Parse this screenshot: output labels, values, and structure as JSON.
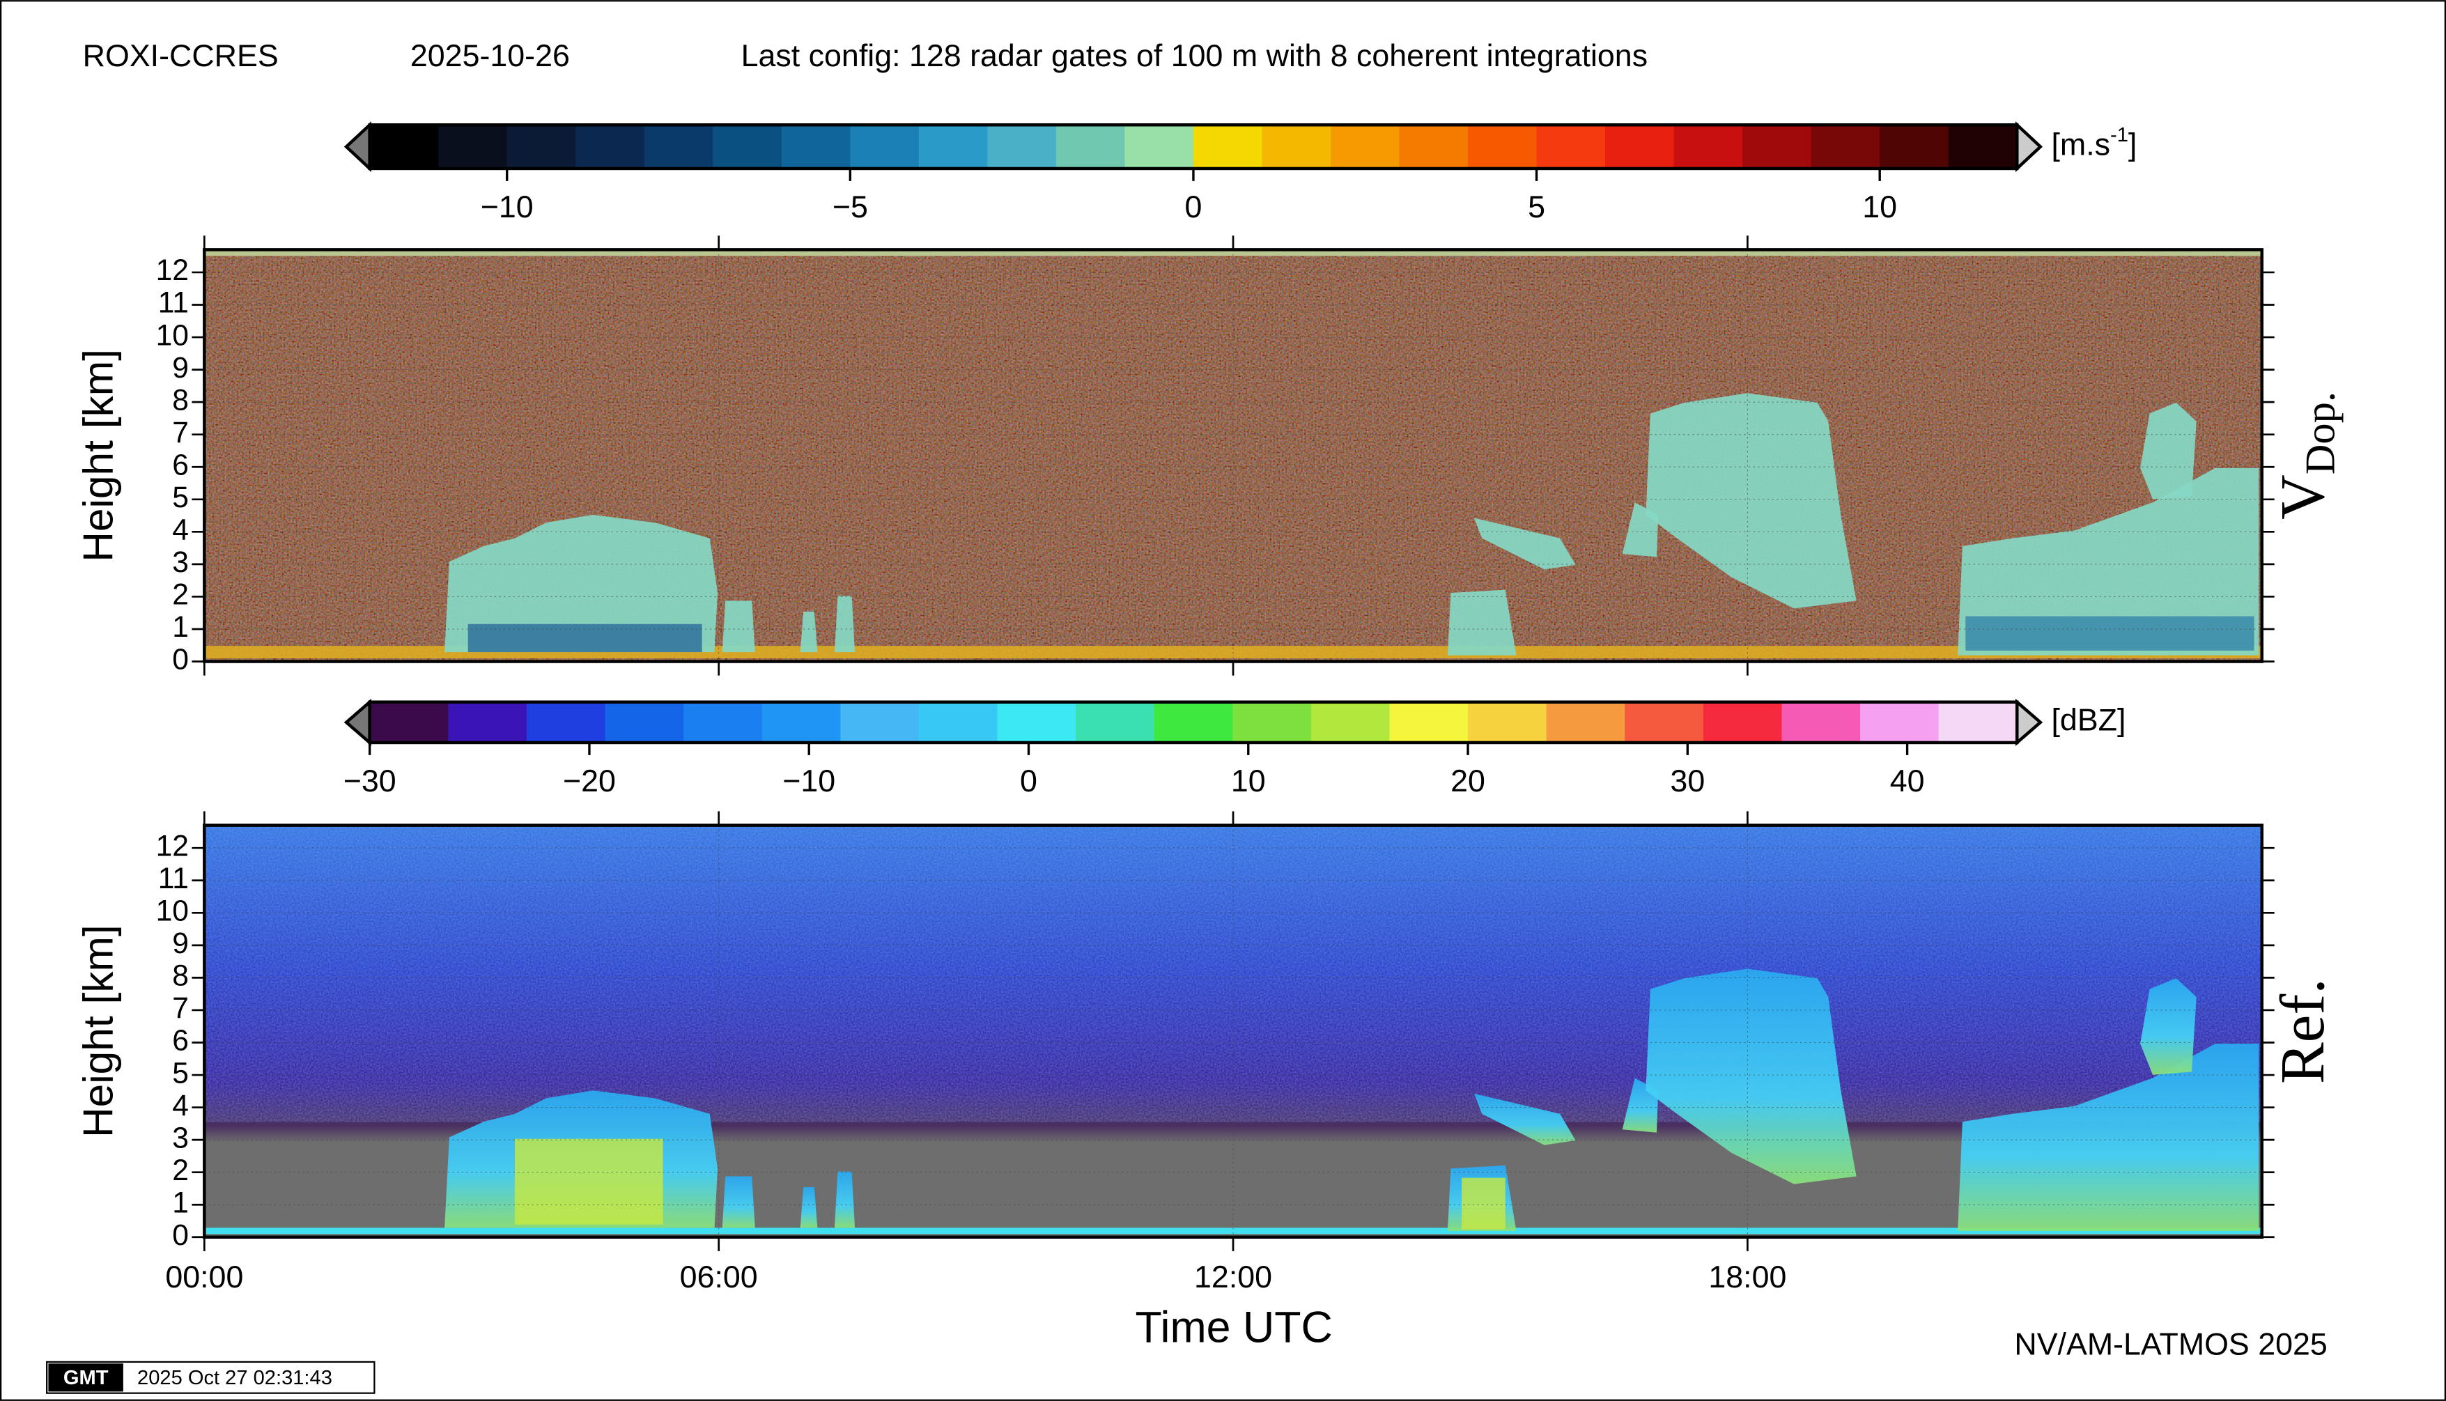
{
  "header": {
    "site": "ROXI-CCRES",
    "date": "2025-10-26",
    "config": "Last config: 128 radar gates of 100 m with 8 coherent integrations"
  },
  "colorbars": [
    {
      "unit_base": "[m.s",
      "unit_sup": "-1",
      "unit_end": "]",
      "lim": [
        -12,
        12
      ],
      "ticks": [
        {
          "value": -10,
          "label": "−10"
        },
        {
          "value": -5,
          "label": "−5"
        },
        0,
        5,
        10
      ],
      "colors": [
        "#000000",
        "#0a0f1e",
        "#0b1a35",
        "#0a2850",
        "#0a3a6a",
        "#0a5080",
        "#10659a",
        "#1a80b5",
        "#2a9ac8",
        "#4ab0c8",
        "#70c8b0",
        "#98e0a8",
        "#f5d800",
        "#f5b800",
        "#f59a00",
        "#f57a00",
        "#f55a00",
        "#f53a10",
        "#e82010",
        "#c81010",
        "#a00a0a",
        "#780808",
        "#500505",
        "#200202"
      ]
    },
    {
      "unit": "[dBZ]",
      "lim": [
        -30,
        45
      ],
      "ticks": [
        {
          "value": -30,
          "label": "−30"
        },
        {
          "value": -20,
          "label": "−20"
        },
        {
          "value": -10,
          "label": "−10"
        },
        0,
        10,
        20,
        30,
        40
      ],
      "colors": [
        "#3a0a4a",
        "#3b14b8",
        "#1f3fe0",
        "#1565e8",
        "#1a7ff0",
        "#1f95f5",
        "#45b7f5",
        "#37c8f5",
        "#3de8f5",
        "#3ae0b0",
        "#3ee83e",
        "#7ee03e",
        "#b0e83e",
        "#f5f53e",
        "#f5d23e",
        "#f59a3e",
        "#f55a3e",
        "#f52a3e",
        "#f55ab4",
        "#f5a0f0",
        "#f5d8f5"
      ]
    }
  ],
  "panels": [
    {
      "ylabel": "Height [km]",
      "side_label": "V",
      "side_sub": "Dop.",
      "ylim": [
        0,
        12.7
      ],
      "yticks": [
        0,
        1,
        2,
        3,
        4,
        5,
        6,
        7,
        8,
        9,
        10,
        11,
        12
      ]
    },
    {
      "ylabel": "Height [km]",
      "side_label": "Ref.",
      "ylim": [
        0,
        12.7
      ],
      "yticks": [
        0,
        1,
        2,
        3,
        4,
        5,
        6,
        7,
        8,
        9,
        10,
        11,
        12
      ]
    }
  ],
  "xaxis": {
    "label": "Time UTC",
    "xlim": [
      0,
      24
    ],
    "xticks": [
      {
        "value": 0,
        "label": "00:00"
      },
      {
        "value": 6,
        "label": "06:00"
      },
      {
        "value": 12,
        "label": "12:00"
      },
      {
        "value": 18,
        "label": "18:00"
      }
    ]
  },
  "footer": {
    "credit": "NV/AM-LATMOS 2025",
    "gmt_logo": "GMT",
    "timestamp": "2025 Oct 27 02:31:43"
  }
}
